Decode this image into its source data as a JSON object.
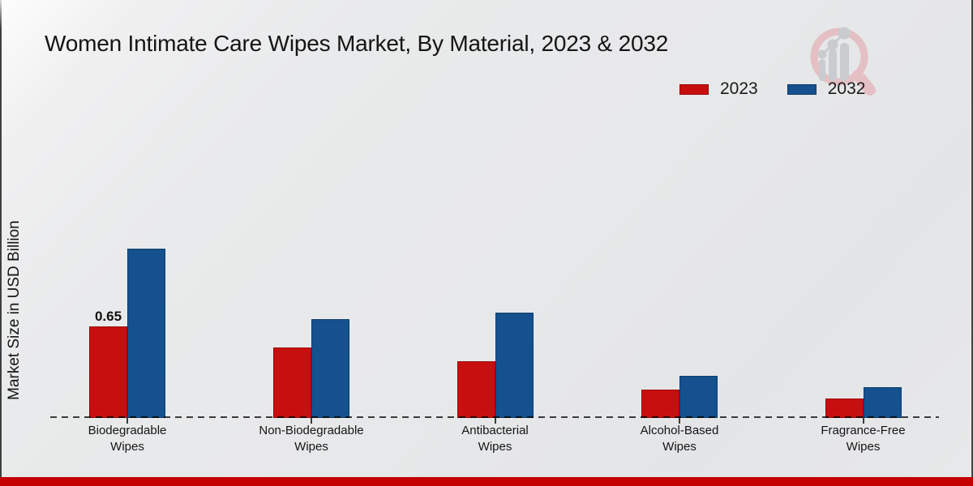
{
  "header": {
    "title": "Women Intimate Care Wipes Market, By Material, 2023 & 2032"
  },
  "watermark": {
    "name": "magnifier-growth-chart-logo"
  },
  "chart_data": {
    "type": "bar",
    "title": "Women Intimate Care Wipes Market, By Material, 2023 & 2032",
    "xlabel": "",
    "ylabel": "Market Size in USD Billion",
    "categories": [
      "Biodegradable Wipes",
      "Non-Biodegradable Wipes",
      "Antibacterial Wipes",
      "Alcohol-Based Wipes",
      "Fragrance-Free Wipes"
    ],
    "series": [
      {
        "name": "2023",
        "color": "#c80f0f",
        "border_color": "#9a0707",
        "values": [
          0.65,
          0.5,
          0.4,
          0.2,
          0.14
        ]
      },
      {
        "name": "2032",
        "color": "#14518e",
        "border_color": "#0d3c6b",
        "values": [
          1.2,
          0.7,
          0.75,
          0.3,
          0.22
        ]
      }
    ],
    "data_labels": [
      {
        "series": "2023",
        "category": "Biodegradable Wipes",
        "text": "0.65"
      }
    ],
    "ylim": [
      0,
      1.4
    ],
    "grid": false,
    "axis_style": "dashed-baseline-only",
    "legend_position": "top-right"
  },
  "style": {
    "accent_red": "#c80f0f",
    "accent_blue": "#14518e",
    "footer_color": "#c40000",
    "baseline_color": "#3b3b3b",
    "watermark_gray": "#c9cbce",
    "watermark_pink": "#e4bfc3"
  }
}
